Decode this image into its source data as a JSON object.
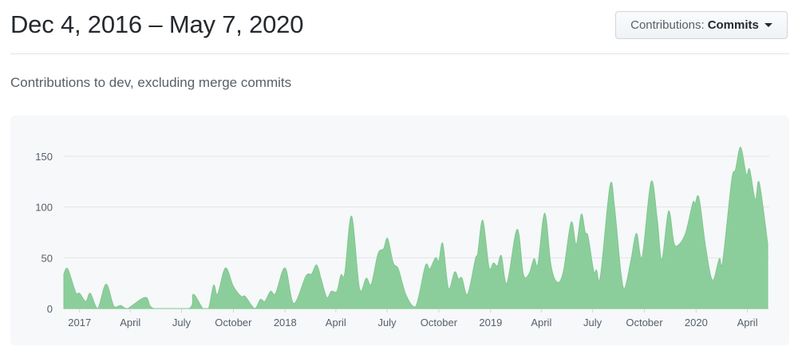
{
  "header": {
    "title": "Dec 4, 2016 – May 7, 2020",
    "dropdown": {
      "label": "Contributions:",
      "value": "Commits",
      "icon": "caret-down-icon"
    }
  },
  "subtitle": "Contributions to dev, excluding merge commits",
  "colors": {
    "area": "#8cce9b",
    "area_stroke": "#7fc78f",
    "grid": "#e1e4e8",
    "panel": "#f6f8fa"
  },
  "chart_data": {
    "type": "area",
    "title": "",
    "xlabel": "",
    "ylabel": "",
    "xlim": [
      "2016-12-04",
      "2020-05-07"
    ],
    "ylim": [
      0,
      165
    ],
    "yticks": [
      0,
      50,
      100,
      150
    ],
    "xticks": [
      {
        "date": "2017-01-01",
        "label": "2017"
      },
      {
        "date": "2017-04-01",
        "label": "April"
      },
      {
        "date": "2017-07-01",
        "label": "July"
      },
      {
        "date": "2017-10-01",
        "label": "October"
      },
      {
        "date": "2018-01-01",
        "label": "2018"
      },
      {
        "date": "2018-04-01",
        "label": "April"
      },
      {
        "date": "2018-07-01",
        "label": "July"
      },
      {
        "date": "2018-10-01",
        "label": "October"
      },
      {
        "date": "2019-01-01",
        "label": "2019"
      },
      {
        "date": "2019-04-01",
        "label": "April"
      },
      {
        "date": "2019-07-01",
        "label": "July"
      },
      {
        "date": "2019-10-01",
        "label": "October"
      },
      {
        "date": "2020-01-01",
        "label": "2020"
      },
      {
        "date": "2020-04-01",
        "label": "April"
      }
    ],
    "grid": true,
    "legend": "none",
    "series": [
      {
        "points": [
          [
            "2016-12-04",
            34
          ],
          [
            "2016-12-11",
            39
          ],
          [
            "2016-12-25",
            16
          ],
          [
            "2017-01-01",
            15
          ],
          [
            "2017-01-12",
            7
          ],
          [
            "2017-01-20",
            15
          ],
          [
            "2017-02-02",
            0
          ],
          [
            "2017-02-17",
            24
          ],
          [
            "2017-03-03",
            2
          ],
          [
            "2017-03-15",
            3
          ],
          [
            "2017-03-27",
            0
          ],
          [
            "2017-04-28",
            11
          ],
          [
            "2017-05-13",
            0
          ],
          [
            "2017-07-14",
            0
          ],
          [
            "2017-07-22",
            14
          ],
          [
            "2017-08-08",
            0
          ],
          [
            "2017-08-18",
            0
          ],
          [
            "2017-08-27",
            23
          ],
          [
            "2017-09-03",
            14
          ],
          [
            "2017-09-17",
            40
          ],
          [
            "2017-10-01",
            22
          ],
          [
            "2017-10-15",
            12
          ],
          [
            "2017-10-22",
            12
          ],
          [
            "2017-11-08",
            0
          ],
          [
            "2017-11-18",
            9
          ],
          [
            "2017-11-26",
            7
          ],
          [
            "2017-12-06",
            17
          ],
          [
            "2017-12-15",
            15
          ],
          [
            "2018-01-01",
            40
          ],
          [
            "2018-01-16",
            5
          ],
          [
            "2018-02-07",
            32
          ],
          [
            "2018-02-17",
            34
          ],
          [
            "2018-02-26",
            43
          ],
          [
            "2018-03-06",
            29
          ],
          [
            "2018-03-16",
            11
          ],
          [
            "2018-03-24",
            17
          ],
          [
            "2018-04-03",
            17
          ],
          [
            "2018-04-10",
            33
          ],
          [
            "2018-04-17",
            35
          ],
          [
            "2018-04-29",
            91
          ],
          [
            "2018-05-13",
            20
          ],
          [
            "2018-05-25",
            30
          ],
          [
            "2018-06-03",
            24
          ],
          [
            "2018-06-15",
            54
          ],
          [
            "2018-06-25",
            59
          ],
          [
            "2018-07-02",
            69
          ],
          [
            "2018-07-12",
            45
          ],
          [
            "2018-07-21",
            39
          ],
          [
            "2018-08-04",
            13
          ],
          [
            "2018-08-21",
            2
          ],
          [
            "2018-09-07",
            42
          ],
          [
            "2018-09-15",
            39
          ],
          [
            "2018-09-25",
            50
          ],
          [
            "2018-10-01",
            47
          ],
          [
            "2018-10-08",
            64
          ],
          [
            "2018-10-18",
            20
          ],
          [
            "2018-10-29",
            36
          ],
          [
            "2018-11-05",
            29
          ],
          [
            "2018-11-11",
            30
          ],
          [
            "2018-11-21",
            14
          ],
          [
            "2018-12-05",
            49
          ],
          [
            "2018-12-09",
            54
          ],
          [
            "2018-12-18",
            87
          ],
          [
            "2018-12-29",
            41
          ],
          [
            "2019-01-06",
            45
          ],
          [
            "2019-01-13",
            42
          ],
          [
            "2019-01-20",
            52
          ],
          [
            "2019-01-30",
            25
          ],
          [
            "2019-02-17",
            78
          ],
          [
            "2019-02-28",
            34
          ],
          [
            "2019-03-10",
            34
          ],
          [
            "2019-03-19",
            49
          ],
          [
            "2019-03-26",
            44
          ],
          [
            "2019-04-07",
            94
          ],
          [
            "2019-04-18",
            43
          ],
          [
            "2019-04-29",
            26
          ],
          [
            "2019-05-10",
            36
          ],
          [
            "2019-05-24",
            85
          ],
          [
            "2019-06-02",
            63
          ],
          [
            "2019-06-11",
            93
          ],
          [
            "2019-06-18",
            75
          ],
          [
            "2019-06-23",
            71
          ],
          [
            "2019-07-03",
            37
          ],
          [
            "2019-07-08",
            38
          ],
          [
            "2019-07-15",
            32
          ],
          [
            "2019-08-01",
            121
          ],
          [
            "2019-08-09",
            100
          ],
          [
            "2019-08-20",
            37
          ],
          [
            "2019-08-27",
            20
          ],
          [
            "2019-09-07",
            47
          ],
          [
            "2019-09-17",
            74
          ],
          [
            "2019-09-27",
            51
          ],
          [
            "2019-10-13",
            125
          ],
          [
            "2019-10-24",
            87
          ],
          [
            "2019-11-01",
            48
          ],
          [
            "2019-11-13",
            96
          ],
          [
            "2019-11-22",
            66
          ],
          [
            "2019-11-29",
            62
          ],
          [
            "2019-12-13",
            74
          ],
          [
            "2019-12-26",
            104
          ],
          [
            "2019-12-30",
            103
          ],
          [
            "2020-01-06",
            109
          ],
          [
            "2020-01-18",
            60
          ],
          [
            "2020-01-30",
            28
          ],
          [
            "2020-02-11",
            49
          ],
          [
            "2020-02-17",
            46
          ],
          [
            "2020-03-04",
            126
          ],
          [
            "2020-03-11",
            137
          ],
          [
            "2020-03-20",
            159
          ],
          [
            "2020-03-30",
            132
          ],
          [
            "2020-04-05",
            137
          ],
          [
            "2020-04-15",
            107
          ],
          [
            "2020-04-22",
            124
          ],
          [
            "2020-05-07",
            64
          ]
        ]
      }
    ]
  }
}
